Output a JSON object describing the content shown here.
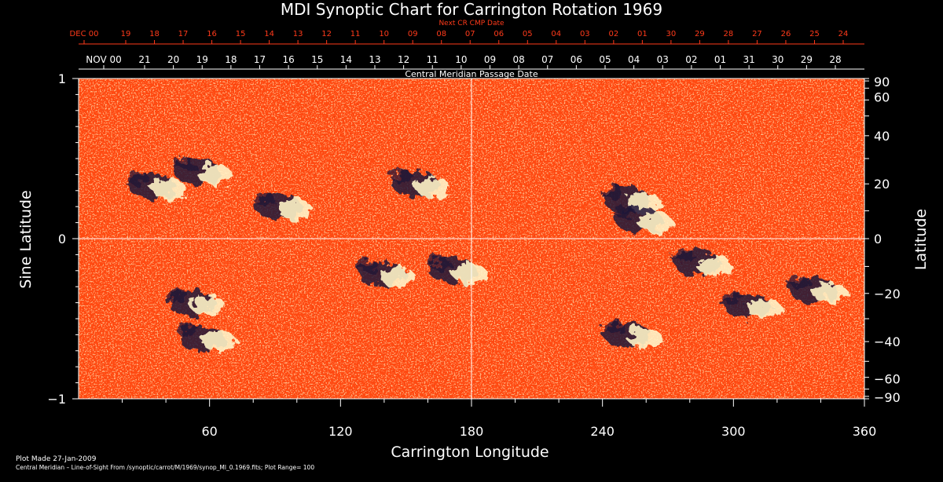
{
  "chart_data": {
    "type": "heatmap",
    "title": "MDI Synoptic Chart for Carrington Rotation 1969",
    "xlabel": "Carrington Longitude",
    "ylabel_left": "Sine Latitude",
    "ylabel_right": "Latitude",
    "xlim": [
      0,
      360
    ],
    "ylim": [
      -1,
      1
    ],
    "x_ticks": [
      60,
      120,
      180,
      240,
      300,
      360
    ],
    "y_ticks_left": [
      {
        "value": 1,
        "label": "1"
      },
      {
        "value": 0,
        "label": "0"
      },
      {
        "value": -1,
        "label": "−1"
      }
    ],
    "y_ticks_right": [
      {
        "deg": 90,
        "label": "90"
      },
      {
        "deg": 60,
        "label": "60"
      },
      {
        "deg": 40,
        "label": "40"
      },
      {
        "deg": 20,
        "label": "20"
      },
      {
        "deg": 0,
        "label": "0"
      },
      {
        "deg": -20,
        "label": "−20"
      },
      {
        "deg": -40,
        "label": "−40"
      },
      {
        "deg": -60,
        "label": "−60"
      },
      {
        "deg": -90,
        "label": "−90"
      }
    ],
    "top_axis_red": {
      "title": "Next CR CMP Date",
      "labels": [
        "DEC 00",
        "19",
        "18",
        "17",
        "16",
        "15",
        "14",
        "13",
        "12",
        "11",
        "10",
        "09",
        "08",
        "07",
        "06",
        "05",
        "04",
        "03",
        "02",
        "01",
        "30",
        "29",
        "28",
        "27",
        "26",
        "25",
        "24"
      ]
    },
    "top_axis_white": {
      "title": "Central Meridian Passage Date",
      "labels": [
        "NOV 00",
        "21",
        "20",
        "19",
        "18",
        "17",
        "16",
        "15",
        "14",
        "13",
        "12",
        "11",
        "10",
        "09",
        "08",
        "07",
        "06",
        "05",
        "04",
        "03",
        "02",
        "01",
        "31",
        "30",
        "29",
        "28"
      ]
    },
    "plot_range": 100,
    "regions": [
      {
        "lon": 37,
        "sinlat": 0.33,
        "polarity": "mixed"
      },
      {
        "lon": 58,
        "sinlat": 0.42,
        "polarity": "mixed"
      },
      {
        "lon": 95,
        "sinlat": 0.2,
        "polarity": "mixed"
      },
      {
        "lon": 158,
        "sinlat": 0.34,
        "polarity": "mixed"
      },
      {
        "lon": 255,
        "sinlat": 0.24,
        "polarity": "mixed"
      },
      {
        "lon": 260,
        "sinlat": 0.12,
        "polarity": "mixed"
      },
      {
        "lon": 287,
        "sinlat": -0.15,
        "polarity": "mixed"
      },
      {
        "lon": 340,
        "sinlat": -0.32,
        "polarity": "mixed"
      },
      {
        "lon": 55,
        "sinlat": -0.4,
        "polarity": "mixed"
      },
      {
        "lon": 142,
        "sinlat": -0.22,
        "polarity": "mixed"
      },
      {
        "lon": 175,
        "sinlat": -0.2,
        "polarity": "mixed"
      },
      {
        "lon": 310,
        "sinlat": -0.42,
        "polarity": "mixed"
      },
      {
        "lon": 60,
        "sinlat": -0.62,
        "polarity": "mixed"
      },
      {
        "lon": 255,
        "sinlat": -0.6,
        "polarity": "mixed"
      }
    ]
  },
  "footer": {
    "plot_made": "Plot Made 27-Jan-2009",
    "info": "Central Meridian – Line-of-Sight From /synoptic/carrot/M/1969/synop_Ml_0.1969.fits; Plot Range= 100"
  },
  "colors": {
    "background": "#000000",
    "text": "#ffffff",
    "accent_red": "#ff3a1a",
    "map_base": "#ff4a12",
    "map_dark": "#d92a00",
    "negative": "#1e1438",
    "positive": "#fff4c8"
  }
}
